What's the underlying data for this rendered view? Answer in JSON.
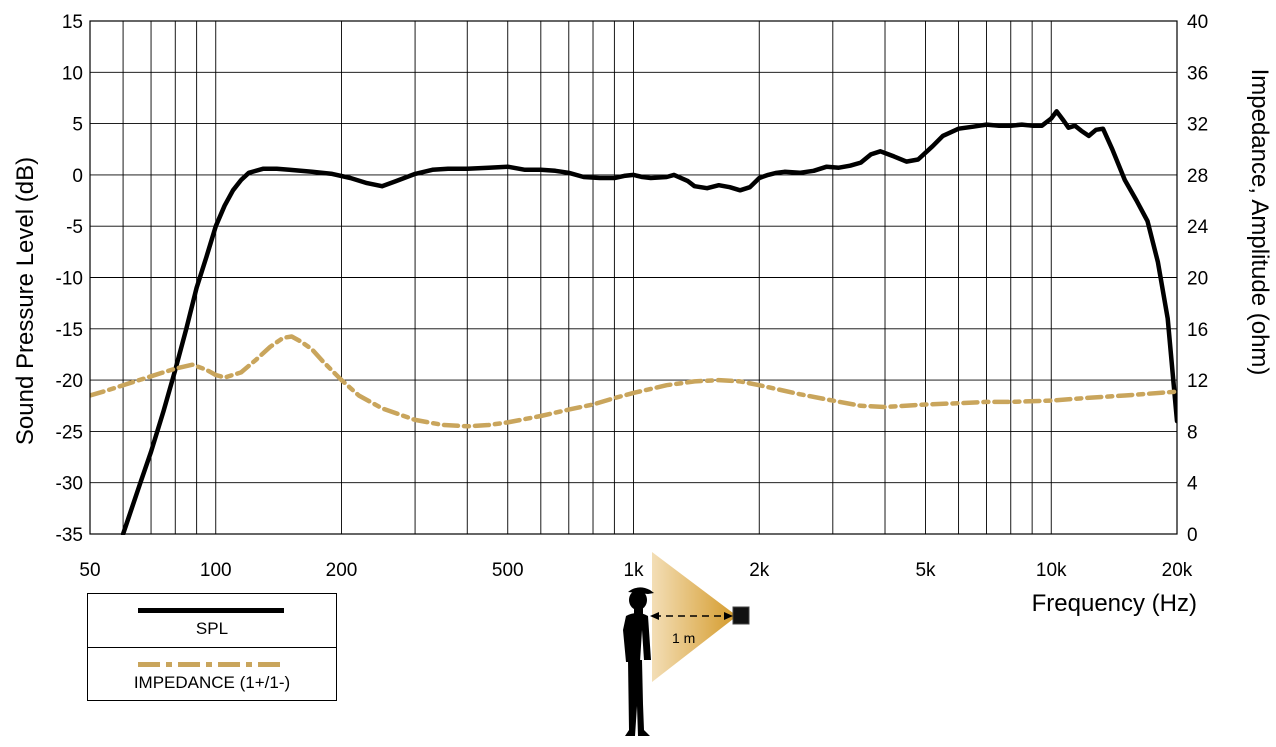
{
  "chart_data": {
    "type": "line",
    "xscale": "log",
    "xlim": [
      50,
      20000
    ],
    "ylim_left": [
      -35,
      15
    ],
    "ylim_right": [
      0,
      40
    ],
    "grid": true,
    "ylabel_left": "Sound Pressure Level (dB)",
    "ylabel_right": "Impedance, Amplitude  (ohm)",
    "xlabel": "Frequency  (Hz)",
    "x_ticks": [
      {
        "value": 50,
        "label": "50"
      },
      {
        "value": 100,
        "label": "100"
      },
      {
        "value": 200,
        "label": "200"
      },
      {
        "value": 500,
        "label": "500"
      },
      {
        "value": 1000,
        "label": "1k"
      },
      {
        "value": 2000,
        "label": "2k"
      },
      {
        "value": 5000,
        "label": "5k"
      },
      {
        "value": 10000,
        "label": "10k"
      },
      {
        "value": 20000,
        "label": "20k"
      }
    ],
    "y_left_ticks": [
      "15",
      "10",
      "5",
      "0",
      "-5",
      "-10",
      "-15",
      "-20",
      "-25",
      "-30",
      "-35"
    ],
    "y_right_ticks": [
      "40",
      "36",
      "32",
      "28",
      "24",
      "20",
      "16",
      "12",
      "8",
      "4",
      "0"
    ],
    "series": [
      {
        "name": "SPL",
        "axis": "left",
        "color": "#000000",
        "style": "solid",
        "points": [
          [
            60,
            -35
          ],
          [
            66,
            -30
          ],
          [
            70,
            -27
          ],
          [
            75,
            -23
          ],
          [
            80,
            -19
          ],
          [
            85,
            -15
          ],
          [
            90,
            -11
          ],
          [
            95,
            -8
          ],
          [
            100,
            -5
          ],
          [
            105,
            -3
          ],
          [
            110,
            -1.5
          ],
          [
            115,
            -0.5
          ],
          [
            120,
            0.2
          ],
          [
            130,
            0.6
          ],
          [
            140,
            0.6
          ],
          [
            150,
            0.5
          ],
          [
            170,
            0.3
          ],
          [
            190,
            0.1
          ],
          [
            210,
            -0.3
          ],
          [
            230,
            -0.8
          ],
          [
            250,
            -1.1
          ],
          [
            270,
            -0.6
          ],
          [
            300,
            0.1
          ],
          [
            330,
            0.5
          ],
          [
            360,
            0.6
          ],
          [
            400,
            0.6
          ],
          [
            450,
            0.7
          ],
          [
            500,
            0.8
          ],
          [
            550,
            0.5
          ],
          [
            600,
            0.5
          ],
          [
            650,
            0.4
          ],
          [
            700,
            0.2
          ],
          [
            760,
            -0.2
          ],
          [
            830,
            -0.3
          ],
          [
            900,
            -0.3
          ],
          [
            950,
            -0.1
          ],
          [
            1000,
            0
          ],
          [
            1050,
            -0.2
          ],
          [
            1100,
            -0.3
          ],
          [
            1200,
            -0.2
          ],
          [
            1250,
            0
          ],
          [
            1350,
            -0.6
          ],
          [
            1400,
            -1.1
          ],
          [
            1500,
            -1.3
          ],
          [
            1600,
            -1.0
          ],
          [
            1700,
            -1.2
          ],
          [
            1800,
            -1.5
          ],
          [
            1900,
            -1.2
          ],
          [
            2000,
            -0.3
          ],
          [
            2100,
            0
          ],
          [
            2200,
            0.2
          ],
          [
            2300,
            0.3
          ],
          [
            2500,
            0.2
          ],
          [
            2700,
            0.4
          ],
          [
            2900,
            0.8
          ],
          [
            3100,
            0.7
          ],
          [
            3300,
            0.9
          ],
          [
            3500,
            1.2
          ],
          [
            3700,
            2.0
          ],
          [
            3900,
            2.3
          ],
          [
            4200,
            1.8
          ],
          [
            4500,
            1.3
          ],
          [
            4800,
            1.5
          ],
          [
            5200,
            2.8
          ],
          [
            5500,
            3.8
          ],
          [
            6000,
            4.5
          ],
          [
            6500,
            4.7
          ],
          [
            7000,
            4.9
          ],
          [
            7500,
            4.8
          ],
          [
            8000,
            4.8
          ],
          [
            8500,
            4.9
          ],
          [
            9000,
            4.8
          ],
          [
            9500,
            4.8
          ],
          [
            10000,
            5.5
          ],
          [
            10300,
            6.2
          ],
          [
            10700,
            5.3
          ],
          [
            11000,
            4.6
          ],
          [
            11400,
            4.8
          ],
          [
            11800,
            4.3
          ],
          [
            12300,
            3.8
          ],
          [
            12800,
            4.4
          ],
          [
            13300,
            4.5
          ],
          [
            14000,
            2.5
          ],
          [
            15000,
            -0.5
          ],
          [
            16000,
            -2.5
          ],
          [
            17000,
            -4.5
          ],
          [
            18000,
            -8.5
          ],
          [
            19000,
            -14
          ],
          [
            20000,
            -24
          ]
        ]
      },
      {
        "name": "IMPEDANCE (1+/1-)",
        "axis": "right",
        "color": "#C9A55C",
        "style": "dashed",
        "points": [
          [
            50,
            10.8
          ],
          [
            55,
            11.2
          ],
          [
            60,
            11.6
          ],
          [
            70,
            12.3
          ],
          [
            80,
            12.9
          ],
          [
            88,
            13.2
          ],
          [
            95,
            12.8
          ],
          [
            100,
            12.4
          ],
          [
            105,
            12.2
          ],
          [
            115,
            12.6
          ],
          [
            125,
            13.6
          ],
          [
            135,
            14.6
          ],
          [
            145,
            15.3
          ],
          [
            152,
            15.4
          ],
          [
            160,
            15.0
          ],
          [
            170,
            14.4
          ],
          [
            180,
            13.5
          ],
          [
            200,
            12.0
          ],
          [
            220,
            10.8
          ],
          [
            250,
            9.8
          ],
          [
            300,
            8.9
          ],
          [
            350,
            8.5
          ],
          [
            400,
            8.4
          ],
          [
            450,
            8.5
          ],
          [
            500,
            8.7
          ],
          [
            600,
            9.2
          ],
          [
            700,
            9.7
          ],
          [
            800,
            10.1
          ],
          [
            900,
            10.6
          ],
          [
            1000,
            11.0
          ],
          [
            1200,
            11.6
          ],
          [
            1400,
            11.9
          ],
          [
            1600,
            12.0
          ],
          [
            1800,
            11.9
          ],
          [
            2000,
            11.6
          ],
          [
            2500,
            10.9
          ],
          [
            3000,
            10.4
          ],
          [
            3500,
            10.0
          ],
          [
            4000,
            9.9
          ],
          [
            5000,
            10.1
          ],
          [
            6000,
            10.2
          ],
          [
            7000,
            10.3
          ],
          [
            8000,
            10.3
          ],
          [
            10000,
            10.4
          ],
          [
            12000,
            10.6
          ],
          [
            15000,
            10.8
          ],
          [
            20000,
            11.1
          ]
        ]
      }
    ],
    "legend": {
      "placement": "bottom-left",
      "entries": [
        {
          "label": "SPL",
          "color": "#000000",
          "style": "solid"
        },
        {
          "label": "IMPEDANCE (1+/1-)",
          "color": "#C9A55C",
          "style": "dashed"
        }
      ]
    },
    "annotation": {
      "distance_label": "1 m"
    }
  }
}
